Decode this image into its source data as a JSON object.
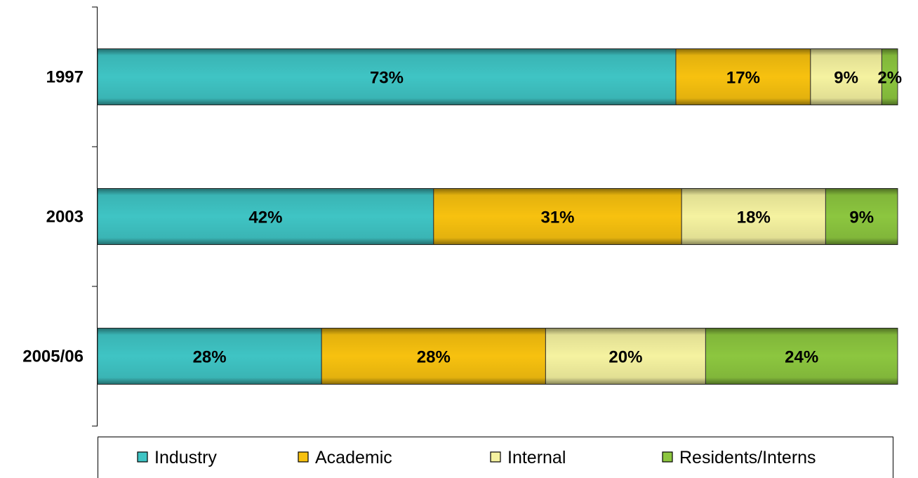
{
  "chart_data": {
    "type": "bar",
    "orientation": "horizontal",
    "stacked": true,
    "normalized_percent": true,
    "categories": [
      "1997",
      "2003",
      "2005/06"
    ],
    "series": [
      {
        "name": "Industry",
        "values": [
          73,
          42,
          28
        ],
        "labels": [
          "73%",
          "42%",
          "28%"
        ],
        "color": "#3fc4c4"
      },
      {
        "name": "Academic",
        "values": [
          17,
          31,
          28
        ],
        "labels": [
          "17%",
          "31%",
          "28%"
        ],
        "color": "#f7c10f"
      },
      {
        "name": "Internal",
        "values": [
          9,
          18,
          20
        ],
        "labels": [
          "9%",
          "18%",
          "20%"
        ],
        "color": "#f5f2a0"
      },
      {
        "name": "Residents/Interns",
        "values": [
          2,
          9,
          24
        ],
        "labels": [
          "2%",
          "9%",
          "24%"
        ],
        "color": "#8cc63f"
      }
    ],
    "title": "",
    "xlabel": "",
    "ylabel": "",
    "grid": false,
    "legend_position": "bottom"
  }
}
